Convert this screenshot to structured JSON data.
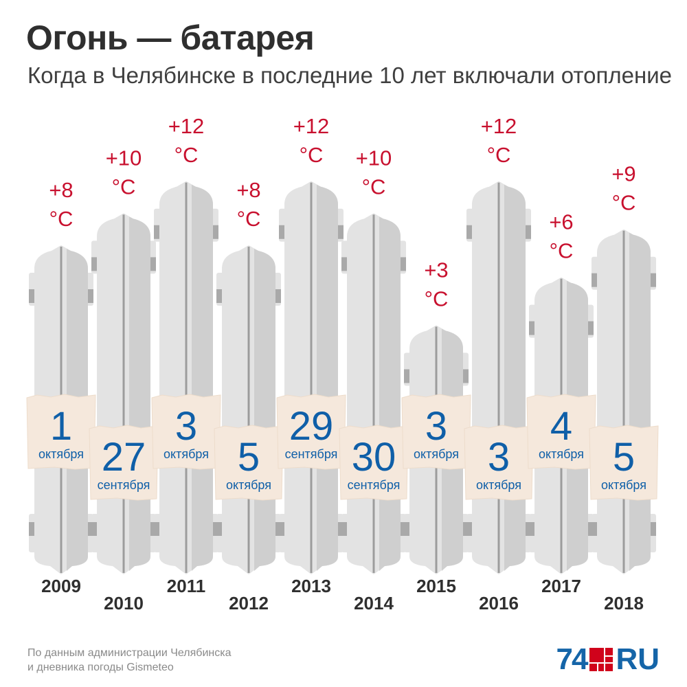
{
  "title": "Огонь — батарея",
  "subtitle": "Когда в Челябинске в последние 10 лет включали отопление",
  "source": [
    "По данным администрации Челябинска",
    "и дневника погоды Gismeteo"
  ],
  "logo": {
    "number": "74",
    "suffix": "RU"
  },
  "colors": {
    "temperature": "#c8102e",
    "date": "#0f5fa8",
    "year": "#2f2f2f",
    "radiator_light": "#e3e3e3",
    "radiator_shade": "#cfcfcf",
    "radiator_cap": "#a9a9a9",
    "radiator_seam": "#9c9c9c",
    "tag_fill": "#f5e8dc",
    "tag_edge": "#eddccb"
  },
  "chart_data": {
    "type": "bar",
    "categories": [
      "2009",
      "2010",
      "2011",
      "2012",
      "2013",
      "2014",
      "2015",
      "2016",
      "2017",
      "2018"
    ],
    "series": [
      {
        "values": [
          8,
          10,
          12,
          8,
          12,
          10,
          3,
          12,
          6,
          9
        ]
      }
    ],
    "temperature_labels": [
      "+8",
      "+10",
      "+12",
      "+8",
      "+12",
      "+10",
      "+3",
      "+12",
      "+6",
      "+9"
    ],
    "temperature_unit": "°C",
    "dates": [
      {
        "day": "1",
        "month": "октября"
      },
      {
        "day": "27",
        "month": "сентября"
      },
      {
        "day": "3",
        "month": "октября"
      },
      {
        "day": "5",
        "month": "октября"
      },
      {
        "day": "29",
        "month": "сентября"
      },
      {
        "day": "30",
        "month": "сентября"
      },
      {
        "day": "3",
        "month": "октября"
      },
      {
        "day": "3",
        "month": "октября"
      },
      {
        "day": "4",
        "month": "октября"
      },
      {
        "day": "5",
        "month": "октября"
      }
    ]
  }
}
